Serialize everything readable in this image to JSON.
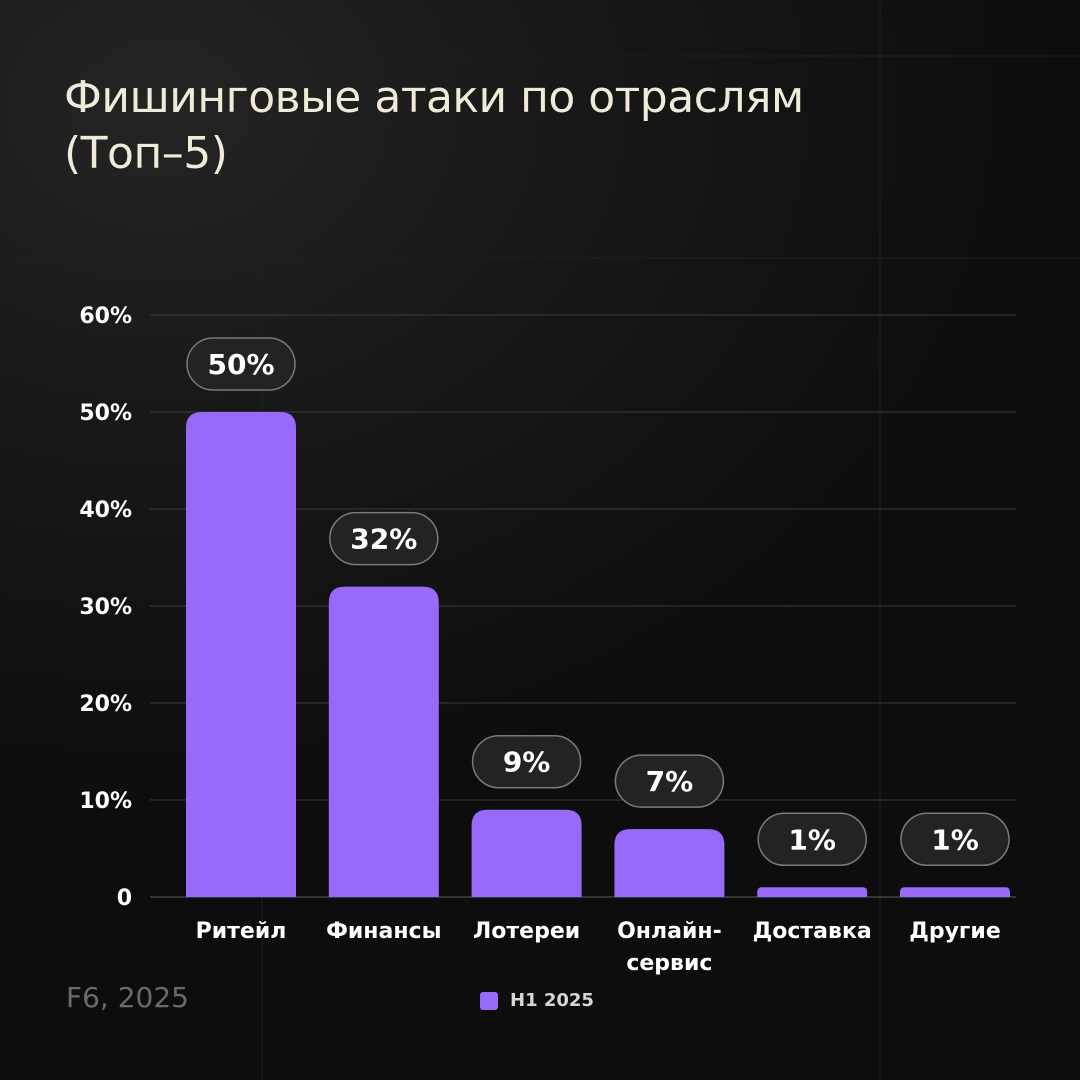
{
  "title_lines": [
    "Фишинговые атаки по отраслям",
    "(Топ–5)"
  ],
  "source": "F6, 2025",
  "legend": {
    "label": "H1 2025"
  },
  "colors": {
    "bar": "#9969fb",
    "label_bg": "#232323",
    "label_border": "#7a7a7a",
    "text": "#ffffff",
    "title": "#f2ead8",
    "grid": "#3c3c3c"
  },
  "chart_data": {
    "type": "bar",
    "categories": [
      "Ритейл",
      "Финансы",
      "Лотереи",
      "Онлайн-сервис",
      "Доставка",
      "Другие"
    ],
    "category_label_lines": [
      [
        "Ритейл"
      ],
      [
        "Финансы"
      ],
      [
        "Лотереи"
      ],
      [
        "Онлайн-",
        "сервис"
      ],
      [
        "Доставка"
      ],
      [
        "Другие"
      ]
    ],
    "series": [
      {
        "name": "H1 2025",
        "values": [
          50,
          32,
          9,
          7,
          1,
          1
        ]
      }
    ],
    "data_labels": [
      "50%",
      "32%",
      "9%",
      "7%",
      "1%",
      "1%"
    ],
    "yticks": [
      0,
      10,
      20,
      30,
      40,
      50,
      60
    ],
    "ytick_labels": [
      "0",
      "10%",
      "20%",
      "30%",
      "40%",
      "50%",
      "60%"
    ],
    "ylim": [
      0,
      60
    ],
    "grid": true,
    "legend_position": "bottom"
  }
}
